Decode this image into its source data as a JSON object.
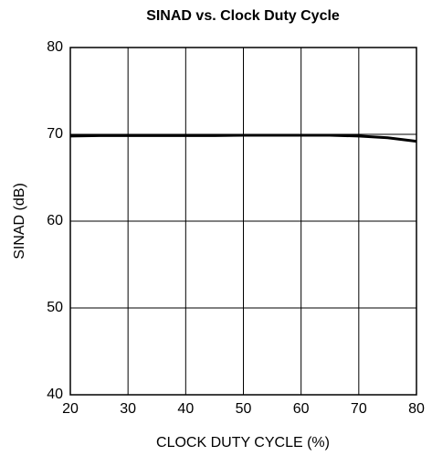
{
  "chart_data": {
    "type": "line",
    "title": "SINAD vs. Clock Duty Cycle",
    "xlabel": "CLOCK DUTY CYCLE (%)",
    "ylabel": "SINAD (dB)",
    "x": [
      20,
      25,
      30,
      35,
      40,
      45,
      50,
      55,
      60,
      65,
      70,
      75,
      80
    ],
    "series": [
      {
        "color": "#000000",
        "values": [
          69.8,
          69.85,
          69.85,
          69.85,
          69.85,
          69.85,
          69.9,
          69.9,
          69.9,
          69.9,
          69.8,
          69.6,
          69.2
        ]
      }
    ],
    "xlim": [
      20,
      80
    ],
    "xticks": [
      20,
      30,
      40,
      50,
      60,
      70,
      80
    ],
    "ylim": [
      40,
      80
    ],
    "yticks": [
      40,
      50,
      60,
      70,
      80
    ],
    "grid": true
  }
}
